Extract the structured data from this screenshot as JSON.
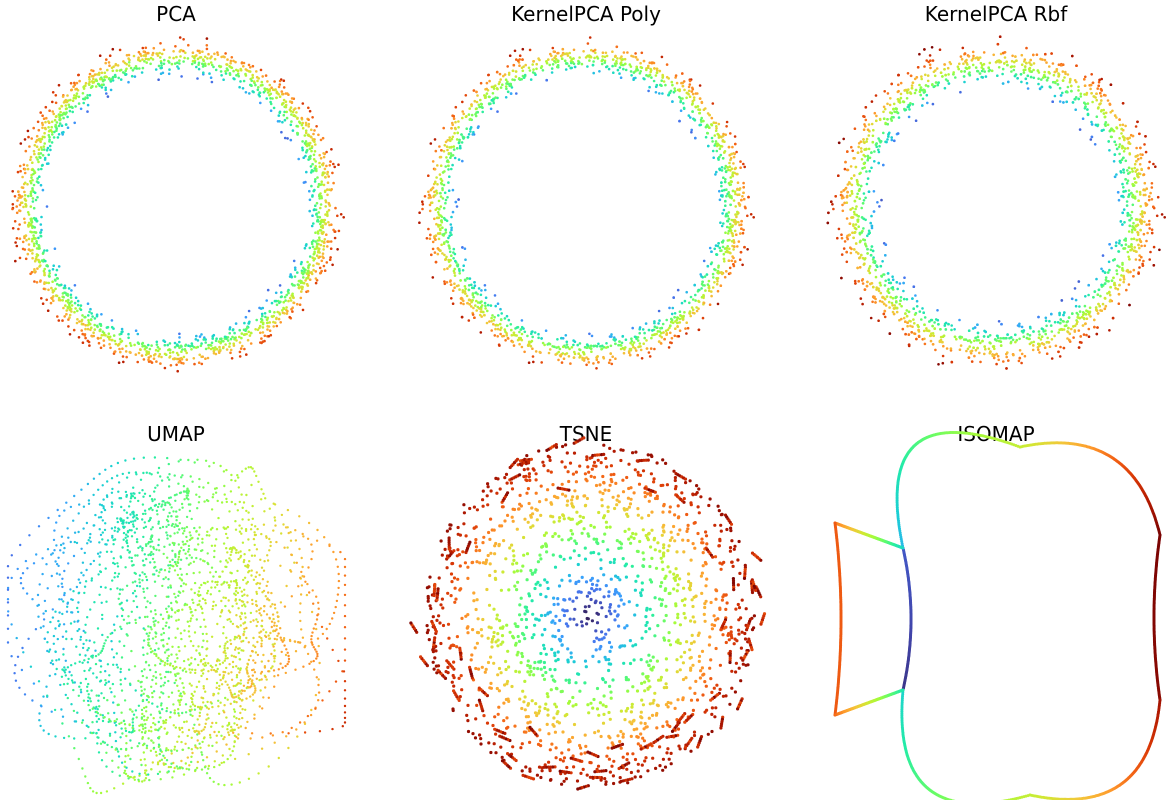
{
  "chart_data": [
    {
      "type": "scatter",
      "title": "PCA",
      "shape": "ring",
      "axis": "off",
      "grid": false,
      "colormap": "turbo",
      "color_order": "inner-blue-to-outer-red"
    },
    {
      "type": "scatter",
      "title": "KernelPCA Poly",
      "shape": "ring",
      "axis": "off",
      "grid": false,
      "colormap": "turbo",
      "color_order": "inner-blue-to-outer-red"
    },
    {
      "type": "scatter",
      "title": "KernelPCA Rbf",
      "shape": "ring",
      "axis": "off",
      "grid": false,
      "colormap": "turbo",
      "color_order": "inner-blue-to-outer-darkred"
    },
    {
      "type": "scatter",
      "title": "UMAP",
      "shape": "tangled-loops",
      "axis": "off",
      "grid": false,
      "colormap": "turbo"
    },
    {
      "type": "scatter",
      "title": "TSNE",
      "shape": "radial-disc",
      "axis": "off",
      "grid": false,
      "colormap": "turbo",
      "color_order": "center-darkblue-to-edge-darkred"
    },
    {
      "type": "line",
      "title": "ISOMAP",
      "shape": "closed-curve-with-side-lobe",
      "axis": "off",
      "grid": false,
      "colormap": "turbo"
    }
  ],
  "colors": {
    "colormap_stops": [
      "#30123b",
      "#4145ab",
      "#4675ed",
      "#39a2fc",
      "#1bcfd4",
      "#24eca6",
      "#61fc6c",
      "#a4fc3b",
      "#d1e834",
      "#f3c63a",
      "#fe9b2d",
      "#f36315",
      "#d93806",
      "#b11901",
      "#7a0403"
    ]
  }
}
